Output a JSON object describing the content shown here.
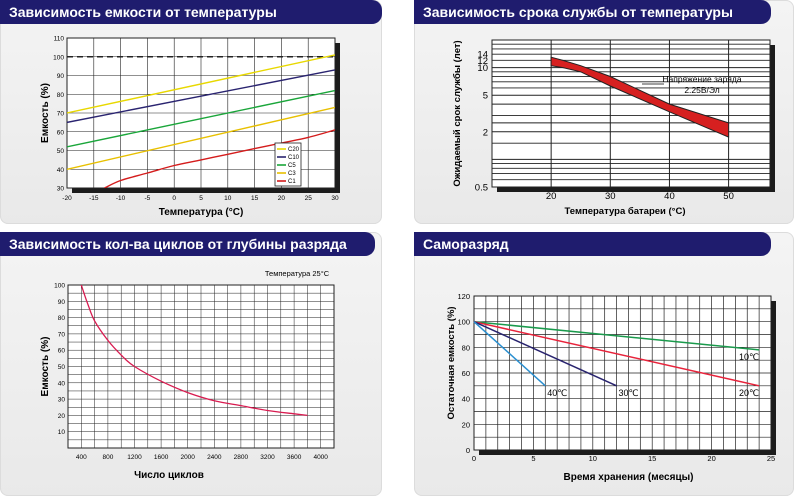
{
  "panels": [
    {
      "title": "Зависимость емкости от температуры",
      "chart_data": {
        "type": "line",
        "xlabel": "Температура (°C)",
        "ylabel": "Емкость (%)",
        "xlim": [
          -20,
          30
        ],
        "ylim": [
          30,
          110
        ],
        "xticks": [
          -20,
          -15,
          -10,
          -5,
          0,
          5,
          10,
          15,
          20,
          25,
          30
        ],
        "yticks": [
          30,
          40,
          50,
          60,
          70,
          80,
          90,
          100,
          110
        ],
        "grid": true,
        "legend_position": "lower-right",
        "series": [
          {
            "name": "C20",
            "color": "#e8d800",
            "x": [
              -20,
              30
            ],
            "y": [
              70,
              101
            ]
          },
          {
            "name": "C10",
            "color": "#2a2470",
            "x": [
              -20,
              30
            ],
            "y": [
              65,
              93
            ]
          },
          {
            "name": "C5",
            "color": "#1aa63a",
            "x": [
              -20,
              30
            ],
            "y": [
              52,
              82
            ]
          },
          {
            "name": "C3",
            "color": "#e8c000",
            "x": [
              -20,
              30
            ],
            "y": [
              40,
              73
            ]
          },
          {
            "name": "C1",
            "color": "#d41c1c",
            "x": [
              -13,
              -10,
              -5,
              0,
              5,
              10,
              15,
              20,
              25,
              30
            ],
            "y": [
              30,
              34,
              38,
              42,
              45,
              48,
              51,
              54,
              57,
              61
            ]
          }
        ],
        "reference_lines": [
          {
            "y": 100,
            "style": "dashed"
          }
        ]
      }
    },
    {
      "title": "Зависимость срока службы от температуры",
      "chart_data": {
        "type": "area",
        "xlabel": "Температура батареи (°C)",
        "ylabel": "Ожидаемый срок службы (лет)",
        "xlim": [
          10,
          57
        ],
        "ylim": [
          0.5,
          20
        ],
        "y_scale": "log",
        "xticks": [
          20,
          30,
          40,
          50
        ],
        "yticks": [
          0.5,
          2,
          5,
          10,
          12,
          14
        ],
        "grid": true,
        "annotation": [
          "Напряжение заряда",
          "2.25В/Эл"
        ],
        "band": {
          "color": "#d62020",
          "upper": {
            "x": [
              20,
              22,
              25,
              30,
              40,
              50
            ],
            "y": [
              13,
              12,
              10.5,
              8,
              4,
              2.5
            ]
          },
          "lower": {
            "x": [
              20,
              22,
              25,
              30,
              40,
              50
            ],
            "y": [
              10.5,
              10,
              9,
              6.3,
              3.3,
              1.75
            ]
          }
        }
      }
    },
    {
      "title": "Зависимость кол-ва циклов от глубины разряда",
      "chart_data": {
        "type": "line",
        "xlabel": "Число циклов",
        "ylabel": "Емкость (%)",
        "xlim": [
          200,
          4200
        ],
        "ylim": [
          0,
          100
        ],
        "xticks": [
          400,
          800,
          1200,
          1600,
          2000,
          2400,
          2800,
          3200,
          3600,
          4000
        ],
        "yticks": [
          10,
          20,
          30,
          40,
          50,
          60,
          70,
          80,
          90,
          100
        ],
        "grid": true,
        "annotation": "Температура 25°C",
        "series": [
          {
            "color": "#d81b50",
            "x": [
              400,
              500,
              600,
              800,
              1000,
              1200,
              1600,
              2000,
              2400,
              2800,
              3200,
              3600,
              3800
            ],
            "y": [
              100,
              88,
              78,
              66,
              57,
              50,
              41,
              34,
              29,
              26,
              23,
              21,
              20
            ]
          }
        ]
      }
    },
    {
      "title": "Саморазряд",
      "chart_data": {
        "type": "line",
        "xlabel": "Время хранения (месяцы)",
        "ylabel": "Остаточная емкость (%)",
        "xlim": [
          0,
          25
        ],
        "ylim": [
          0,
          120
        ],
        "xticks": [
          0,
          5,
          10,
          15,
          20,
          25
        ],
        "yticks": [
          0,
          20,
          40,
          60,
          80,
          100,
          120
        ],
        "grid": true,
        "series": [
          {
            "name": "10℃",
            "color": "#1a9a4c",
            "x": [
              0,
              24
            ],
            "y": [
              100,
              78
            ]
          },
          {
            "name": "20℃",
            "color": "#e8233b",
            "x": [
              0,
              24
            ],
            "y": [
              100,
              50
            ]
          },
          {
            "name": "30℃",
            "color": "#28236e",
            "x": [
              0,
              12
            ],
            "y": [
              100,
              50
            ]
          },
          {
            "name": "40℃",
            "color": "#2a8fd0",
            "x": [
              0,
              6
            ],
            "y": [
              100,
              50
            ]
          }
        ]
      }
    }
  ]
}
